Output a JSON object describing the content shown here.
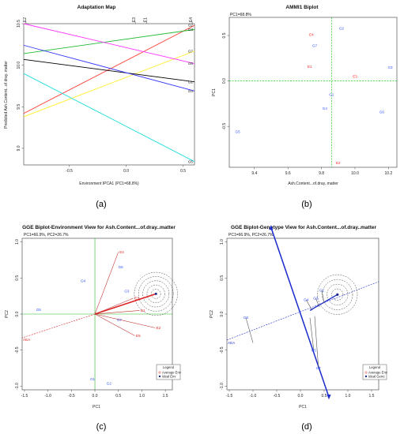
{
  "captions": [
    "(a)",
    "(b)",
    "(c)",
    "(d)"
  ],
  "chart_data": [
    {
      "type": "line",
      "title": "Adaptation Map",
      "xlabel": "Environment IPCA1 (PC1=68.8%)",
      "ylabel": "Predicted Ash.Content...of.dray..matter",
      "xlim": [
        -0.9,
        0.6
      ],
      "ylim": [
        8.8,
        10.5
      ],
      "xticks": [
        "-0.5",
        "0.0",
        "0.5"
      ],
      "xtick_values": [
        -0.5,
        0.0,
        0.5
      ],
      "yticks": [
        "9.0",
        "9.5",
        "10.0",
        "10.5"
      ],
      "ytick_values": [
        9.0,
        9.5,
        10.0,
        10.5
      ],
      "top_env_labels": [
        {
          "label": "E2",
          "x": -0.88
        },
        {
          "label": "E3",
          "x": 0.08
        },
        {
          "label": "E1",
          "x": 0.18
        },
        {
          "label": "E4",
          "x": 0.58
        }
      ],
      "series": [
        {
          "name": "G2",
          "color": "#ff3b30",
          "y_start": 9.42,
          "y_end": 10.48
        },
        {
          "name": "G3",
          "color": "#22bb33",
          "y_start": 10.14,
          "y_end": 10.43
        },
        {
          "name": "G7",
          "color": "#ffee22",
          "y_start": 9.38,
          "y_end": 10.17
        },
        {
          "name": "G6",
          "color": "#ff33ff",
          "y_start": 10.5,
          "y_end": 10.02
        },
        {
          "name": "G1",
          "color": "#000000",
          "y_start": 10.07,
          "y_end": 9.8
        },
        {
          "name": "G4",
          "color": "#3333ff",
          "y_start": 10.24,
          "y_end": 9.69
        },
        {
          "name": "G5",
          "color": "#22dddd",
          "y_start": 9.9,
          "y_end": 8.84
        }
      ]
    },
    {
      "type": "scatter",
      "title": "AMMI1 Biplot",
      "subtitle": "PC1=68.8%",
      "xlabel": "Ash.Content...of.dray..matter",
      "ylabel": "PC1",
      "xlim": [
        9.25,
        10.25
      ],
      "ylim": [
        -0.95,
        0.7
      ],
      "xticks": [
        "9.4",
        "9.6",
        "9.8",
        "10.0",
        "10.2"
      ],
      "xtick_values": [
        9.4,
        9.6,
        9.8,
        10.0,
        10.2
      ],
      "yticks": [
        "-0.5",
        "0.0",
        "0.5"
      ],
      "ytick_values": [
        -0.5,
        0.0,
        0.5
      ],
      "ref_x": 9.86,
      "ref_y": 0.0,
      "points": [
        {
          "label": "G2",
          "x": 9.92,
          "y": 0.58,
          "color": "#3355ff"
        },
        {
          "label": "E4",
          "x": 9.74,
          "y": 0.51,
          "color": "#ff2222"
        },
        {
          "label": "G7",
          "x": 9.76,
          "y": 0.39,
          "color": "#3355ff"
        },
        {
          "label": "E1",
          "x": 9.73,
          "y": 0.16,
          "color": "#ff2222"
        },
        {
          "label": "G3",
          "x": 10.21,
          "y": 0.15,
          "color": "#3355ff"
        },
        {
          "label": "E3",
          "x": 10.0,
          "y": 0.05,
          "color": "#ff2222"
        },
        {
          "label": "G1",
          "x": 9.86,
          "y": -0.15,
          "color": "#3355ff"
        },
        {
          "label": "G4",
          "x": 9.82,
          "y": -0.3,
          "color": "#3355ff"
        },
        {
          "label": "G6",
          "x": 10.16,
          "y": -0.34,
          "color": "#3355ff"
        },
        {
          "label": "G5",
          "x": 9.3,
          "y": -0.56,
          "color": "#3355ff"
        },
        {
          "label": "E2",
          "x": 9.9,
          "y": -0.9,
          "color": "#ff2222"
        }
      ]
    },
    {
      "type": "scatter",
      "title": "GGE Biplot-Environment View for Ash.Content...of.dray..matter",
      "subtitle": "PC1=66.9%, PC2=26.7%",
      "xlabel": "PC1",
      "ylabel": "PC2",
      "xlim": [
        -1.55,
        1.65
      ],
      "ylim": [
        -1.05,
        1.05
      ],
      "xticks": [
        "-1.5",
        "-1.0",
        "-0.5",
        "0.0",
        "0.5",
        "1.0",
        "1.5"
      ],
      "xtick_values": [
        -1.5,
        -1.0,
        -0.5,
        0.0,
        0.5,
        1.0,
        1.5
      ],
      "yticks": [
        "-1.0",
        "-0.5",
        "0.0",
        "0.5",
        "1.0"
      ],
      "ytick_values": [
        -1.0,
        -0.5,
        0.0,
        0.5,
        1.0
      ],
      "origin": [
        0,
        0
      ],
      "env_vectors": [
        {
          "label": "E4",
          "x": 0.5,
          "y": 0.86
        },
        {
          "label": "E3",
          "x": 0.82,
          "y": 0.22
        },
        {
          "label": "E1",
          "x": 0.95,
          "y": 0.05
        },
        {
          "label": "E2",
          "x": 1.28,
          "y": -0.19
        },
        {
          "label": "E5",
          "x": 0.85,
          "y": -0.3
        }
      ],
      "genotypes": [
        {
          "label": "G6",
          "x": 0.55,
          "y": 0.65
        },
        {
          "label": "G4",
          "x": -0.25,
          "y": 0.46
        },
        {
          "label": "G5",
          "x": -1.2,
          "y": 0.06
        },
        {
          "label": "G3",
          "x": 0.68,
          "y": 0.32
        },
        {
          "label": "G7",
          "x": 0.52,
          "y": -0.08
        },
        {
          "label": "G1",
          "x": -0.05,
          "y": -0.9
        },
        {
          "label": "G2",
          "x": 0.3,
          "y": -0.96
        }
      ],
      "ideal_env": {
        "x": 1.3,
        "y": 0.28
      },
      "ideal_rings": [
        0.1,
        0.19,
        0.28,
        0.37,
        0.46
      ],
      "aea_label": "AEA",
      "aea_end": [
        -1.55,
        -0.33
      ],
      "legend": {
        "title": "Legend",
        "items": [
          "Average Env",
          "Ideal Env"
        ],
        "position": "bottom-right"
      }
    },
    {
      "type": "scatter",
      "title": "GGE Biplot-Genotype View for Ash.Content...of.dray..matter",
      "subtitle": "PC1=66.9%, PC2=26.7%",
      "xlabel": "PC1",
      "ylabel": "PC2",
      "xlim": [
        -1.55,
        1.65
      ],
      "ylim": [
        -1.05,
        1.05
      ],
      "xticks": [
        "-1.5",
        "-1.0",
        "-0.5",
        "0.0",
        "0.5",
        "1.0",
        "1.5"
      ],
      "xtick_values": [
        -1.5,
        -1.0,
        -0.5,
        0.0,
        0.5,
        1.0,
        1.5
      ],
      "yticks": [
        "-1.0",
        "-0.5",
        "0.0",
        "0.5",
        "1.0"
      ],
      "ytick_values": [
        -1.0,
        -0.5,
        0.0,
        0.5,
        1.0
      ],
      "ideal_gen": {
        "x": 0.78,
        "y": 0.27
      },
      "ideal_rings": [
        0.12,
        0.22,
        0.32,
        0.42
      ],
      "ata_start": [
        -1.55,
        -0.36
      ],
      "ata_end": [
        1.65,
        0.45
      ],
      "aea_label": "AEA",
      "arrow_up": [
        -0.62,
        1.2
      ],
      "arrow_down": [
        0.6,
        -1.15
      ],
      "genotypes": [
        {
          "label": "G6",
          "x": -1.15,
          "y": -0.05,
          "foot": [
            -1.0,
            -0.4
          ]
        },
        {
          "label": "G4",
          "x": 0.12,
          "y": 0.2,
          "foot": [
            0.25,
            0.05
          ]
        },
        {
          "label": "G3",
          "x": 0.32,
          "y": 0.22,
          "foot": [
            0.4,
            0.1
          ]
        },
        {
          "label": "G1",
          "x": 0.45,
          "y": 0.33,
          "foot": [
            0.5,
            0.15
          ]
        },
        {
          "label": "G5",
          "x": 0.28,
          "y": -0.5,
          "foot": [
            0.2,
            -0.05
          ]
        },
        {
          "label": "G7",
          "x": 0.38,
          "y": -0.75,
          "foot": [
            0.3,
            -0.03
          ]
        }
      ],
      "legend": {
        "title": "Legend",
        "items": [
          "Average Env",
          "Ideal Geno"
        ],
        "position": "bottom-right"
      }
    }
  ]
}
